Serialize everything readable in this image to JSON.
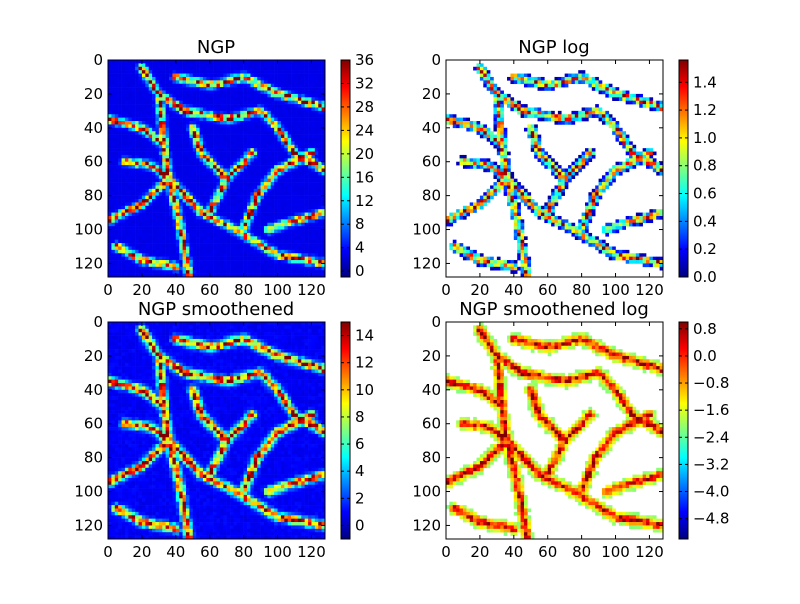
{
  "colormap": [
    "#00007f",
    "#0000ff",
    "#007fff",
    "#00ffff",
    "#7fff7f",
    "#ffff00",
    "#ff7f00",
    "#ff0000",
    "#7f0000"
  ],
  "chart_data": [
    {
      "type": "heatmap",
      "title": "NGP",
      "xlabel": "",
      "ylabel": "",
      "xlim": [
        0,
        128
      ],
      "ylim": [
        128,
        0
      ],
      "xticks": [
        "0",
        "20",
        "40",
        "60",
        "80",
        "100",
        "120"
      ],
      "yticks": [
        "0",
        "20",
        "40",
        "60",
        "80",
        "100",
        "120"
      ],
      "colorbar": {
        "range": [
          -1,
          36
        ],
        "ticks": [
          "36",
          "32",
          "28",
          "24",
          "20",
          "16",
          "12",
          "8",
          "4",
          "0"
        ]
      },
      "log": false
    },
    {
      "type": "heatmap",
      "title": "NGP log",
      "xlabel": "",
      "ylabel": "",
      "xlim": [
        0,
        128
      ],
      "ylim": [
        128,
        0
      ],
      "xticks": [
        "0",
        "20",
        "40",
        "60",
        "80",
        "100",
        "120"
      ],
      "yticks": [
        "0",
        "20",
        "40",
        "60",
        "80",
        "100",
        "120"
      ],
      "colorbar": {
        "range": [
          0,
          1.56
        ],
        "ticks": [
          "1.4",
          "1.2",
          "1.0",
          "0.8",
          "0.6",
          "0.4",
          "0.2",
          "0.0"
        ]
      },
      "log": true
    },
    {
      "type": "heatmap",
      "title": "NGP smoothened",
      "xlabel": "",
      "ylabel": "",
      "xlim": [
        0,
        128
      ],
      "ylim": [
        128,
        0
      ],
      "xticks": [
        "0",
        "20",
        "40",
        "60",
        "80",
        "100",
        "120"
      ],
      "yticks": [
        "0",
        "20",
        "40",
        "60",
        "80",
        "100",
        "120"
      ],
      "colorbar": {
        "range": [
          -1,
          15
        ],
        "ticks": [
          "14",
          "12",
          "10",
          "8",
          "6",
          "4",
          "2",
          "0"
        ]
      },
      "log": false
    },
    {
      "type": "heatmap",
      "title": "NGP smoothened log",
      "xlabel": "",
      "ylabel": "",
      "xlim": [
        0,
        128
      ],
      "ylim": [
        128,
        0
      ],
      "xticks": [
        "0",
        "20",
        "40",
        "60",
        "80",
        "100",
        "120"
      ],
      "yticks": [
        "0",
        "20",
        "40",
        "60",
        "80",
        "100",
        "120"
      ],
      "colorbar": {
        "range": [
          -5.4,
          1.0
        ],
        "ticks": [
          "0.8",
          "0.0",
          "−0.8",
          "−1.6",
          "−2.4",
          "−3.2",
          "−4.0",
          "−4.8"
        ]
      },
      "log": true
    }
  ]
}
